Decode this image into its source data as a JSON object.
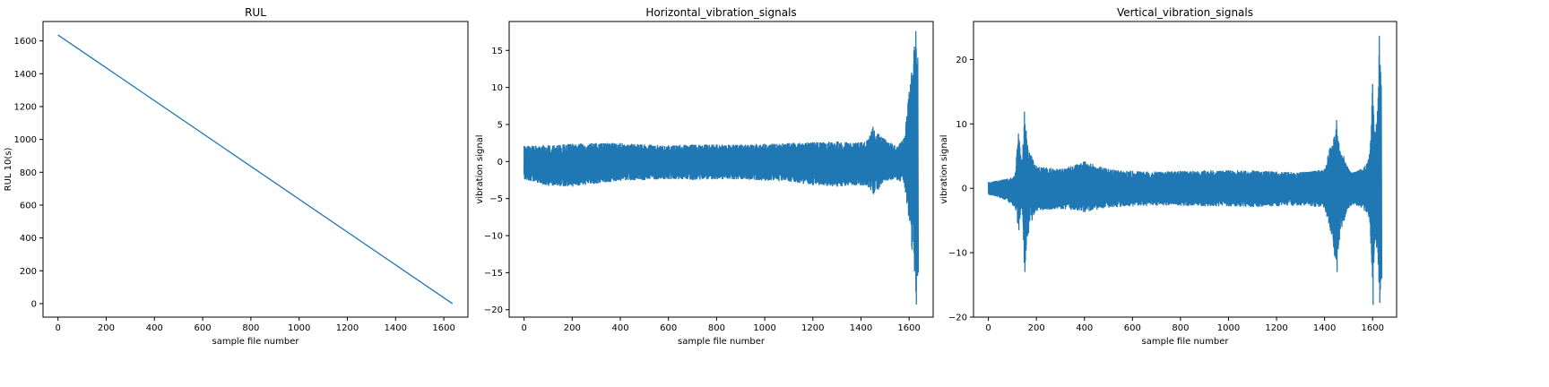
{
  "chart_data": [
    {
      "type": "line",
      "title": "RUL",
      "xlabel": "sample file number",
      "ylabel": "RUL 10(s)",
      "xlim": [
        -62,
        1700
      ],
      "ylim": [
        -82,
        1718
      ],
      "xticks": [
        0,
        200,
        400,
        600,
        800,
        1000,
        1200,
        1400,
        1600
      ],
      "yticks": [
        0,
        200,
        400,
        600,
        800,
        1000,
        1200,
        1400,
        1600
      ],
      "grid": false,
      "color": "#1f77b4",
      "series": [
        {
          "x": [
            0,
            1636
          ],
          "y": [
            1636,
            0
          ]
        }
      ]
    },
    {
      "type": "line",
      "title": "Horizontal_vibration_signals",
      "xlabel": "sample file number",
      "ylabel": "vibration signal",
      "xlim": [
        -62,
        1700
      ],
      "ylim": [
        -21,
        18.9
      ],
      "xticks": [
        0,
        200,
        400,
        600,
        800,
        1000,
        1200,
        1400,
        1600
      ],
      "yticks": [
        -20,
        -15,
        -10,
        -5,
        0,
        5,
        10,
        15
      ],
      "grid": false,
      "color": "#1f77b4",
      "series": [
        {
          "x": [
            0,
            100,
            200,
            300,
            400,
            500,
            600,
            700,
            800,
            900,
            1000,
            1100,
            1200,
            1300,
            1400,
            1430,
            1450,
            1470,
            1500,
            1550,
            1580,
            1600,
            1610,
            1620,
            1628,
            1636
          ],
          "upper": [
            2.1,
            2.2,
            2.4,
            2.5,
            2.5,
            2.3,
            2.2,
            2.3,
            2.3,
            2.3,
            2.4,
            2.5,
            2.6,
            2.7,
            2.6,
            3.0,
            4.7,
            3.8,
            3.0,
            2.0,
            3.2,
            9.4,
            12.0,
            15.0,
            17.6,
            14.0
          ],
          "lower": [
            -2.4,
            -3.3,
            -3.4,
            -3.0,
            -2.6,
            -2.5,
            -2.4,
            -2.5,
            -2.4,
            -2.4,
            -2.6,
            -2.7,
            -3.2,
            -3.4,
            -3.2,
            -3.5,
            -4.4,
            -3.8,
            -2.6,
            -2.5,
            -3.0,
            -8.0,
            -11.9,
            -13.0,
            -19.3,
            -15.0
          ]
        }
      ]
    },
    {
      "type": "line",
      "title": "Vertical_vibration_signals",
      "xlabel": "sample file number",
      "ylabel": "vibration signal",
      "xlim": [
        -62,
        1700
      ],
      "ylim": [
        -20,
        25.9
      ],
      "xticks": [
        0,
        200,
        400,
        600,
        800,
        1000,
        1200,
        1400,
        1600
      ],
      "yticks": [
        -20,
        -10,
        0,
        10,
        20
      ],
      "grid": false,
      "color": "#1f77b4",
      "series": [
        {
          "x": [
            0,
            50,
            80,
            110,
            125,
            140,
            150,
            165,
            180,
            200,
            300,
            400,
            500,
            600,
            700,
            800,
            900,
            1000,
            1100,
            1200,
            1300,
            1400,
            1420,
            1440,
            1450,
            1460,
            1480,
            1500,
            1520,
            1550,
            1580,
            1590,
            1600,
            1610,
            1620,
            1628,
            1636
          ],
          "upper": [
            1.0,
            1.3,
            1.5,
            2.0,
            8.5,
            4.0,
            11.9,
            6.0,
            5.0,
            3.5,
            3.0,
            4.2,
            3.0,
            2.7,
            2.6,
            2.7,
            2.8,
            2.8,
            2.8,
            2.6,
            2.5,
            3.0,
            6.0,
            8.0,
            10.6,
            7.0,
            5.0,
            3.0,
            2.5,
            3.0,
            4.0,
            6.0,
            16.2,
            8.0,
            12.0,
            23.7,
            16.0
          ],
          "lower": [
            -1.0,
            -1.5,
            -2.0,
            -3.0,
            -6.5,
            -3.0,
            -13.0,
            -7.0,
            -5.0,
            -3.5,
            -3.2,
            -3.7,
            -3.0,
            -2.8,
            -2.7,
            -2.7,
            -2.8,
            -2.8,
            -2.9,
            -2.8,
            -2.7,
            -3.0,
            -6.0,
            -10.0,
            -13.0,
            -8.0,
            -5.0,
            -3.0,
            -2.5,
            -3.0,
            -4.0,
            -6.0,
            -18.1,
            -8.0,
            -10.0,
            -17.8,
            -14.0
          ]
        }
      ]
    }
  ]
}
